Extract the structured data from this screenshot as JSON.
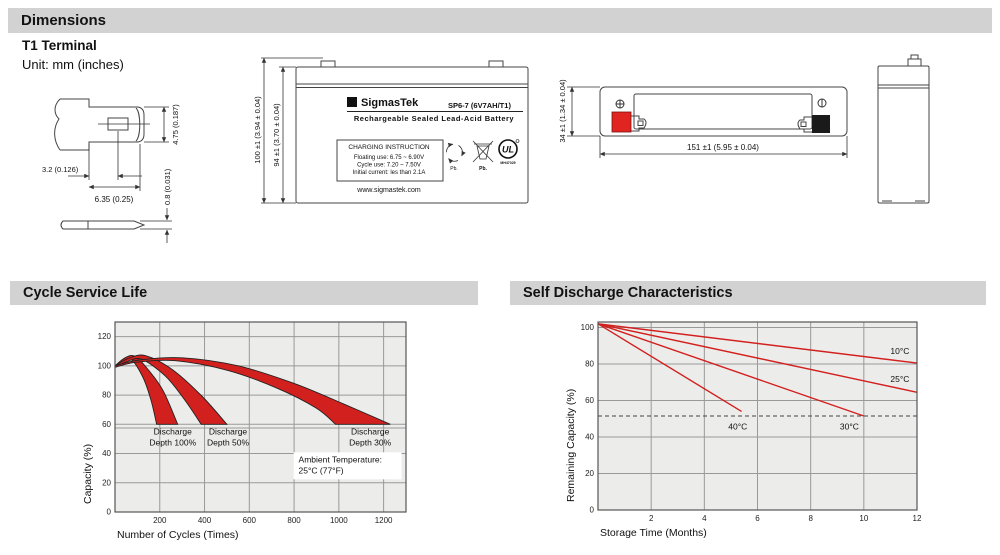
{
  "header": {
    "title": "Dimensions"
  },
  "dimensions_section": {
    "subtitle": "T1 Terminal",
    "unit_note": "Unit: mm (inches)",
    "terminal_detail": {
      "dim_height": "4.75 (0.187)",
      "dim_offset": "3.2 (0.126)",
      "dim_width": "6.35 (0.25)",
      "dim_thickness": "0.8 (0.031)"
    },
    "front_view": {
      "dim_overall_height": "100 ±1 (3.94 ± 0.04)",
      "dim_case_height": "94 ±1 (3.70 ± 0.04)",
      "label": {
        "logo_glyph": "Σ",
        "brand": "SigmasTek",
        "model": "SP6-7 (6V7AH/T1)",
        "subtitle": "Rechargeable Sealed Lead-Acid Battery",
        "charging_box_title": "CHARGING INSTRUCTION",
        "charging_lines": [
          "Floating use: 6.75 ~ 6.90V",
          "Cycle use: 7.20 ~ 7.50V",
          "Initial current: les than 2.1A"
        ],
        "website": "www.sigmastek.com",
        "pb_recycle_label": "Pb.",
        "pb_bin_label": "Pb.",
        "ul_letters": "UL",
        "ul_number": "MH47029"
      }
    },
    "top_view": {
      "dim_width": "34 ±1 (1.34 ± 0.04)",
      "dim_length": "151 ±1 (5.95 ± 0.04)",
      "positive_terminal_color": "#e02420",
      "negative_terminal_color": "#1a1a1a"
    }
  },
  "chart_data": [
    {
      "type": "area",
      "title": "Cycle Service Life",
      "xlabel": "Number of Cycles (Times)",
      "ylabel": "Capacity (%)",
      "xlim": [
        0,
        1300
      ],
      "ylim": [
        0,
        130
      ],
      "xticks": [
        200,
        400,
        600,
        800,
        1000,
        1200
      ],
      "yticks": [
        0,
        20,
        40,
        60,
        80,
        100,
        120
      ],
      "extra_gridlines_y": [
        57.5
      ],
      "plot_bg": "#ecedeb",
      "grid_color": "#999999",
      "band_color": "#d2201e",
      "bands": [
        {
          "name": "Discharge Depth 100%",
          "upper": [
            [
              0,
              100
            ],
            [
              45,
              105.5
            ],
            [
              90,
              106.5
            ],
            [
              150,
              97
            ],
            [
              215,
              83
            ],
            [
              280,
              60
            ]
          ],
          "lower": [
            [
              0,
              99
            ],
            [
              35,
              103
            ],
            [
              75,
              104
            ],
            [
              125,
              92
            ],
            [
              160,
              77
            ],
            [
              186,
              60
            ]
          ]
        },
        {
          "name": "Discharge Depth 50%",
          "upper": [
            [
              0,
              100
            ],
            [
              60,
              105
            ],
            [
              135,
              107
            ],
            [
              260,
              97
            ],
            [
              390,
              79
            ],
            [
              500,
              60
            ]
          ],
          "lower": [
            [
              0,
              99
            ],
            [
              55,
              103
            ],
            [
              120,
              104.5
            ],
            [
              225,
              93
            ],
            [
              310,
              77
            ],
            [
              385,
              60
            ]
          ]
        },
        {
          "name": "Discharge Depth 30%",
          "upper": [
            [
              0,
              100
            ],
            [
              110,
              104
            ],
            [
              300,
              105.5
            ],
            [
              550,
              100
            ],
            [
              800,
              88
            ],
            [
              1020,
              74
            ],
            [
              1230,
              60
            ]
          ],
          "lower": [
            [
              0,
              99
            ],
            [
              95,
              102.5
            ],
            [
              270,
              103.5
            ],
            [
              500,
              97
            ],
            [
              720,
              85
            ],
            [
              900,
              71
            ],
            [
              985,
              60
            ]
          ]
        }
      ],
      "annotations": [
        {
          "lines": [
            "Discharge",
            "Depth 100%"
          ],
          "x": 258,
          "y": 53,
          "anchor": "middle"
        },
        {
          "lines": [
            "Discharge",
            "Depth 50%"
          ],
          "x": 505,
          "y": 53,
          "anchor": "middle"
        },
        {
          "lines": [
            "Discharge",
            "Depth 30%"
          ],
          "x": 1140,
          "y": 53,
          "anchor": "middle"
        },
        {
          "lines": [
            "Ambient Temperature:",
            "25°C (77°F)"
          ],
          "x": 820,
          "y": 34,
          "anchor": "start",
          "bg": true
        }
      ]
    },
    {
      "type": "line",
      "title": "Self Discharge Characteristics",
      "xlabel": "Storage Time (Months)",
      "ylabel": "Remaining Capacity (%)",
      "xlim": [
        0,
        12
      ],
      "ylim": [
        0,
        103
      ],
      "xticks": [
        2,
        4,
        6,
        8,
        10,
        12
      ],
      "yticks": [
        0,
        20,
        40,
        60,
        80,
        100
      ],
      "plot_bg": "#ecedeb",
      "grid_color": "#999999",
      "line_color": "#d2201e",
      "ref_line": {
        "y": 51.5,
        "style": "dashed"
      },
      "series": [
        {
          "name": "10°C",
          "points": [
            [
              0,
              102
            ],
            [
              12,
              80.5
            ]
          ],
          "label_pos": [
            11.0,
            85.5
          ]
        },
        {
          "name": "25°C",
          "points": [
            [
              0,
              102
            ],
            [
              12,
              64.5
            ]
          ],
          "label_pos": [
            11.0,
            70
          ]
        },
        {
          "name": "30°C",
          "points": [
            [
              0,
              102
            ],
            [
              10,
              51.5
            ]
          ],
          "label_pos": [
            9.1,
            44
          ]
        },
        {
          "name": "40°C",
          "points": [
            [
              0,
              102
            ],
            [
              5.4,
              54
            ]
          ],
          "label_pos": [
            4.9,
            44
          ]
        }
      ]
    }
  ]
}
